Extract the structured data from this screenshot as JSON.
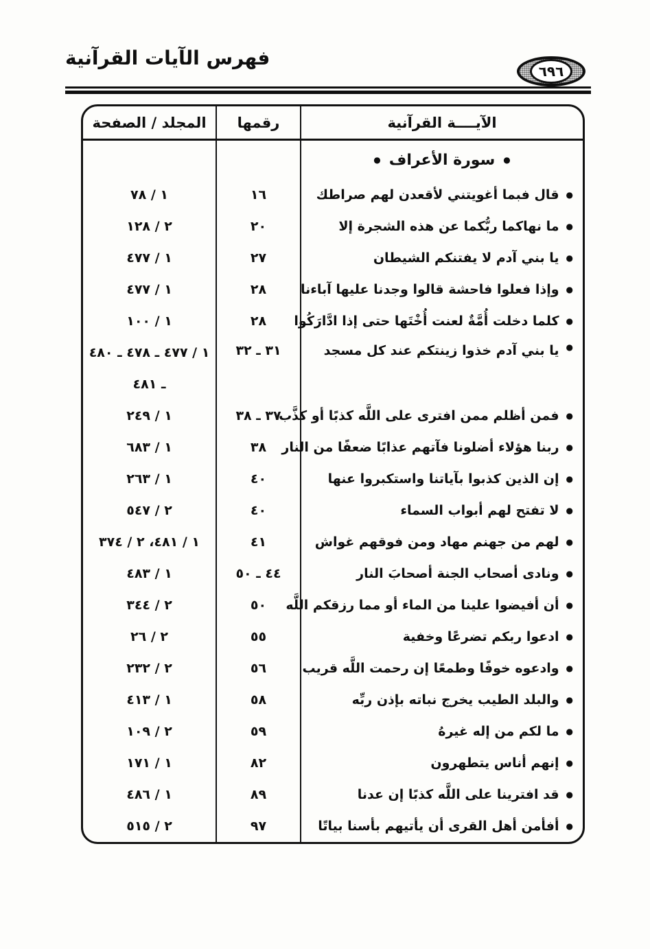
{
  "page": {
    "title": "فهرس الآيات القرآنية",
    "page_number": "٦٩٦"
  },
  "table": {
    "bullet": "●",
    "headers": {
      "verse": "الآيــــة القرآنية",
      "number": "رقمها",
      "volume_page": "المجلد / الصفحة"
    },
    "section_title": "سورة الأعراف",
    "rows": [
      {
        "verse": "قال فبما أغويتني لأقعدن لهم صراطك",
        "number": "١٦",
        "volume_page": "١ / ٧٨"
      },
      {
        "verse": "ما نهاكما ربُّكما عن هذه الشجرة إلا",
        "number": "٢٠",
        "volume_page": "٢ / ١٢٨"
      },
      {
        "verse": "يا بني آدم لا يفتنكم الشيطان",
        "number": "٢٧",
        "volume_page": "١ / ٤٧٧"
      },
      {
        "verse": "وإذا فعلوا فاحشة قالوا وجدنا عليها آباءنا",
        "number": "٢٨",
        "volume_page": "١ / ٤٧٧"
      },
      {
        "verse": "كلما دخلت أُمَّةٌ لعنت أُخْتَها حتى إذا ادَّارَكُوا",
        "number": "٢٨",
        "volume_page": "١ / ١٠٠"
      },
      {
        "verse": "يا بني آدم خذوا زينتكم عند كل مسجد",
        "number": "٣١ ـ ٣٢",
        "volume_page": "١ / ٤٧٧ ـ ٤٧٨ ـ ٤٨٠\nـ ٤٨١"
      },
      {
        "verse": "فمن أظلم ممن افترى على اللَّه كذبًا أو كذَّب",
        "number": "٣٧ ـ ٣٨",
        "volume_page": "١ / ٢٤٩"
      },
      {
        "verse": "ربنا هؤلاء أضلونا فآتهم عذابًا ضعفًا من النار",
        "number": "٣٨",
        "volume_page": "١ / ٦٨٣"
      },
      {
        "verse": "إن الذين كذبوا بآياتنا واستكبروا عنها",
        "number": "٤٠",
        "volume_page": "١ / ٢٦٣"
      },
      {
        "verse": "لا تفتح لهم أبواب السماء",
        "number": "٤٠",
        "volume_page": "٢ / ٥٤٧"
      },
      {
        "verse": "لهم من جهنم مهاد ومن فوقهم غواش",
        "number": "٤١",
        "volume_page": "١ / ٤٨١، ٢ / ٣٧٤"
      },
      {
        "verse": "ونادى أصحاب الجنة أصحابَ النار",
        "number": "٤٤ ـ ٥٠",
        "volume_page": "١ / ٤٨٣"
      },
      {
        "verse": "أن أفيضوا علينا من الماء أو مما رزقكم اللَّه",
        "number": "٥٠",
        "volume_page": "٢ / ٣٤٤"
      },
      {
        "verse": "ادعوا ربكم تضرعًا وخفية",
        "number": "٥٥",
        "volume_page": "٢ / ٢٦"
      },
      {
        "verse": "وادعوه خوفًا وطمعًا إن رحمت اللَّه قريب",
        "number": "٥٦",
        "volume_page": "٢ / ٢٣٢"
      },
      {
        "verse": "والبلد الطيب يخرج نباته بإذن ربِّه",
        "number": "٥٨",
        "volume_page": "١ / ٤١٣"
      },
      {
        "verse": "ما لكم من إله غيرهُ",
        "number": "٥٩",
        "volume_page": "٢ / ١٠٩"
      },
      {
        "verse": "إنهم أناس يتطهرون",
        "number": "٨٢",
        "volume_page": "١ / ١٧١"
      },
      {
        "verse": "قد افترينا على اللَّه كذبًا إن عدنا",
        "number": "٨٩",
        "volume_page": "١ / ٤٨٦"
      },
      {
        "verse": "أفأمن أهل القرى أن يأتيهم بأسنا بياتًا",
        "number": "٩٧",
        "volume_page": "٢ / ٥١٥"
      }
    ]
  }
}
